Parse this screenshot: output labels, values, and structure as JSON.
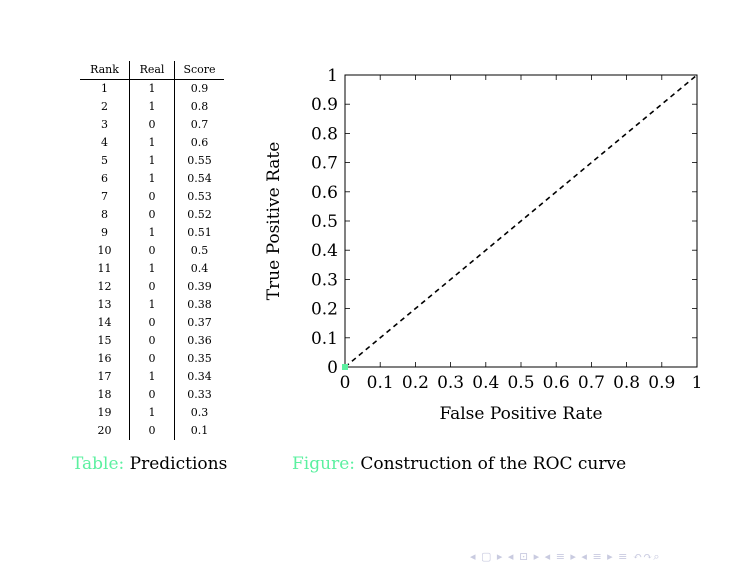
{
  "table": {
    "headers": [
      "Rank",
      "Real",
      "Score"
    ],
    "rows": [
      [
        "1",
        "1",
        "0.9"
      ],
      [
        "2",
        "1",
        "0.8"
      ],
      [
        "3",
        "0",
        "0.7"
      ],
      [
        "4",
        "1",
        "0.6"
      ],
      [
        "5",
        "1",
        "0.55"
      ],
      [
        "6",
        "1",
        "0.54"
      ],
      [
        "7",
        "0",
        "0.53"
      ],
      [
        "8",
        "0",
        "0.52"
      ],
      [
        "9",
        "1",
        "0.51"
      ],
      [
        "10",
        "0",
        "0.5"
      ],
      [
        "11",
        "1",
        "0.4"
      ],
      [
        "12",
        "0",
        "0.39"
      ],
      [
        "13",
        "1",
        "0.38"
      ],
      [
        "14",
        "0",
        "0.37"
      ],
      [
        "15",
        "0",
        "0.36"
      ],
      [
        "16",
        "0",
        "0.35"
      ],
      [
        "17",
        "1",
        "0.34"
      ],
      [
        "18",
        "0",
        "0.33"
      ],
      [
        "19",
        "1",
        "0.3"
      ],
      [
        "20",
        "0",
        "0.1"
      ]
    ],
    "caption_label": "Table:",
    "caption_text": "Predictions"
  },
  "figure": {
    "caption_label": "Figure:",
    "caption_text": "Construction of the ROC curve"
  },
  "chart_data": {
    "type": "line",
    "xlabel": "False Positive Rate",
    "ylabel": "True Positive Rate",
    "xlim": [
      0,
      1
    ],
    "ylim": [
      0,
      1
    ],
    "xticks": [
      "0",
      "0.1",
      "0.2",
      "0.3",
      "0.4",
      "0.5",
      "0.6",
      "0.7",
      "0.8",
      "0.9",
      "1"
    ],
    "yticks": [
      "0",
      "0.1",
      "0.2",
      "0.3",
      "0.4",
      "0.5",
      "0.6",
      "0.7",
      "0.8",
      "0.9",
      "1"
    ],
    "grid": false,
    "series": [
      {
        "style": "dashed",
        "color": "#000000",
        "x": [
          0,
          1
        ],
        "y": [
          0,
          1
        ]
      },
      {
        "style": "marker",
        "color": "#5cf0a0",
        "x": [
          0
        ],
        "y": [
          0
        ]
      }
    ]
  },
  "nav": {
    "symbols": "◂ ▢ ▸  ◂ ⊡ ▸  ◂ ≡ ▸  ◂ ≡ ▸   ≡   ↶↷⌕"
  },
  "colors": {
    "accent": "#5cf0a0",
    "nav": "#c9cbe0"
  }
}
